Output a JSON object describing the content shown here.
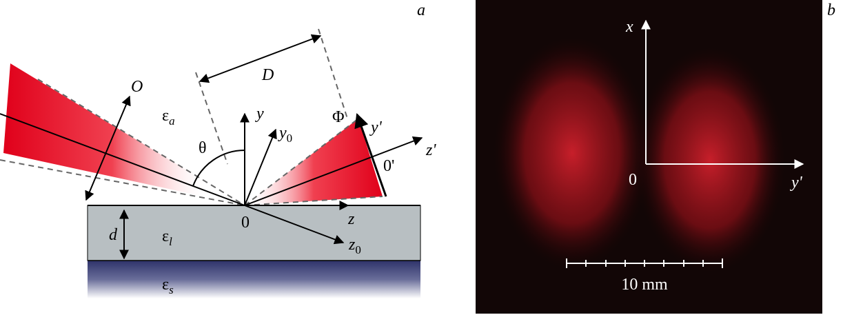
{
  "panel_a": {
    "label": "a",
    "objective": "O",
    "distance": "D",
    "ambient": {
      "symbol": "ε",
      "sub": "a"
    },
    "angle": "θ",
    "axis_y": "y",
    "axis_y0": {
      "symbol": "y",
      "sub": "0"
    },
    "screen": "Φ",
    "axis_y_prime": "y'",
    "axis_z_prime": "z'",
    "origin_prime": "0'",
    "origin": "0",
    "axis_z": "z",
    "axis_z0": {
      "symbol": "z",
      "sub": "0"
    },
    "thickness": "d",
    "layer": {
      "symbol": "ε",
      "sub": "l"
    },
    "substrate": {
      "symbol": "ε",
      "sub": "s"
    }
  },
  "panel_b": {
    "label": "b",
    "axis_x": "x",
    "origin": "0",
    "axis_y_prime": "y'",
    "scale_bar": "10 mm"
  }
}
